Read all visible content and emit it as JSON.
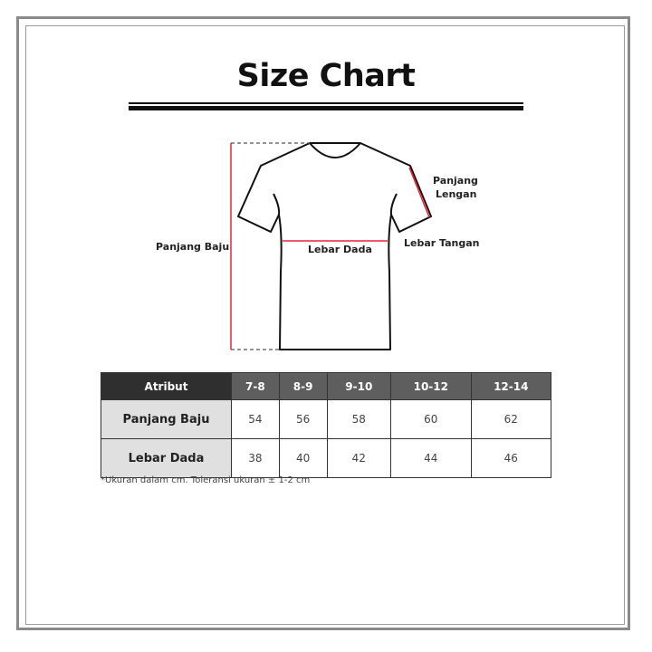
{
  "title": "Size Chart",
  "diagram": {
    "labels": {
      "panjang_baju": "Panjang Baju",
      "lebar_dada": "Lebar Dada",
      "panjang_lengan_line1": "Panjang",
      "panjang_lengan_line2": "Lengan",
      "lebar_tangan": "Lebar Tangan"
    },
    "measure_color": "#e8223a"
  },
  "table": {
    "headers": [
      "Atribut",
      "7-8",
      "8-9",
      "9-10",
      "10-12",
      "12-14"
    ],
    "rows": [
      {
        "label": "Panjang Baju",
        "values": [
          "54",
          "56",
          "58",
          "60",
          "62"
        ]
      },
      {
        "label": "Lebar Dada",
        "values": [
          "38",
          "40",
          "42",
          "44",
          "46"
        ]
      }
    ]
  },
  "note": "*Ukuran dalam cm. Toleransi ukuran ± 1-2 cm"
}
